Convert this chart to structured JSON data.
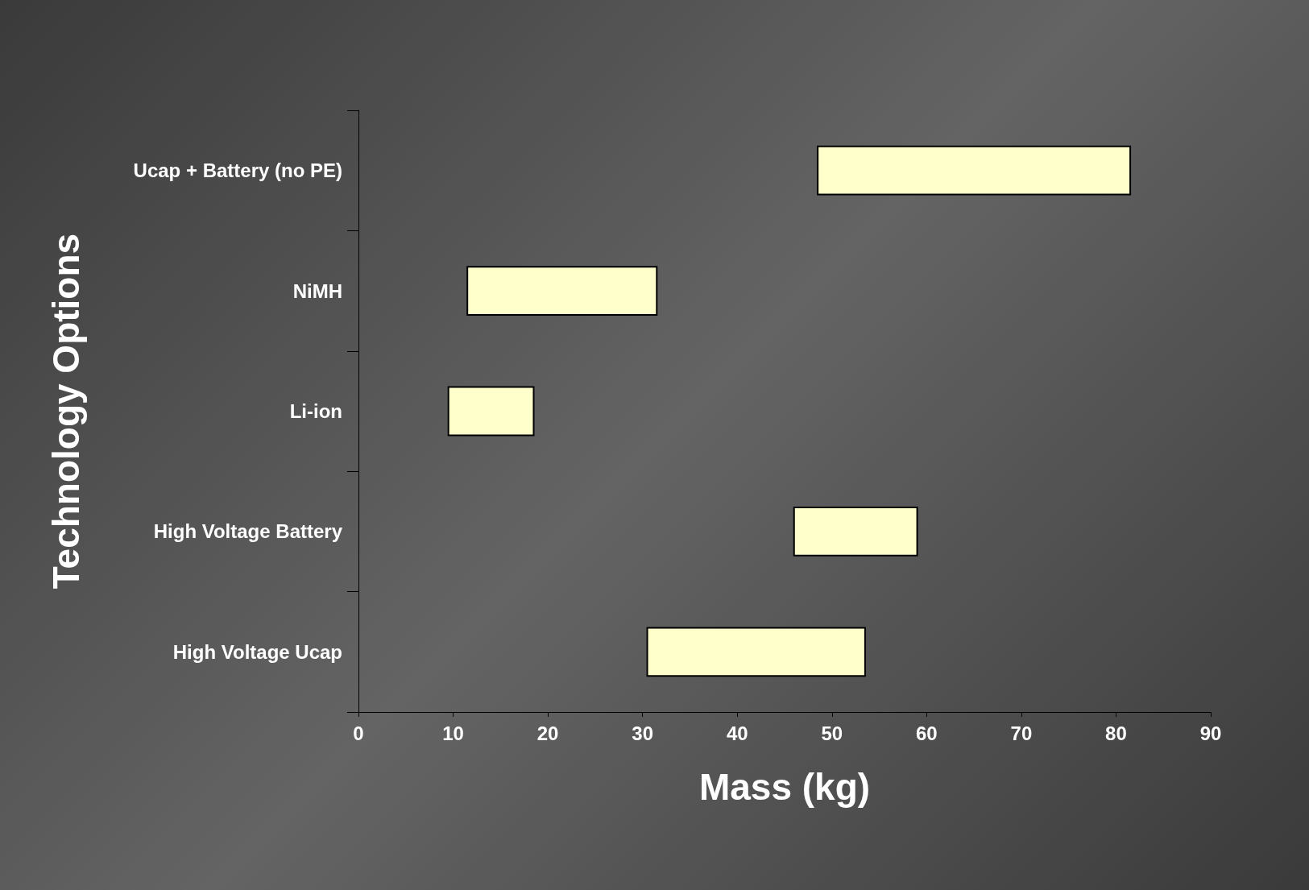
{
  "chart_data": {
    "type": "bar",
    "orientation": "horizontal",
    "xlabel": "Mass (kg)",
    "ylabel": "Technology Options",
    "categories": [
      "Ucap + Battery (no PE)",
      "NiMH",
      "Li-ion",
      "High Voltage Battery",
      "High Voltage Ucap"
    ],
    "base": [
      48.5,
      11.5,
      9.5,
      46,
      30.5
    ],
    "values": [
      33,
      20,
      9,
      13,
      23
    ],
    "color": "#ffffcc",
    "xlim": [
      0,
      90
    ],
    "xticks": [
      0,
      10,
      20,
      30,
      40,
      50,
      60,
      70,
      80,
      90
    ],
    "grid": false
  }
}
